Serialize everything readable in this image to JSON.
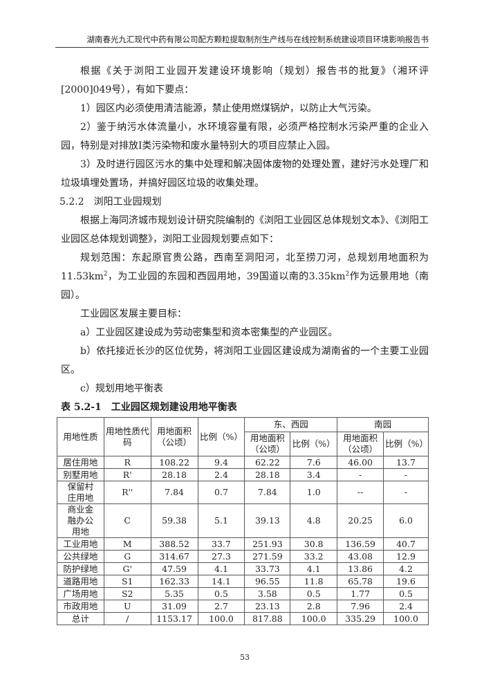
{
  "header": "湖南春光九汇现代中药有限公司配方颗粒提取制剂生产线与在线控制系统建设项目环境影响报告书",
  "paragraphs": {
    "p1": "根据《关于浏阳工业园开发建设环境影响（规划）报告书的批复》（湘环评[2000]049号），有如下要点：",
    "p2": "1）园区内必须使用清洁能源，禁止使用燃煤锅炉，以防止大气污染。",
    "p3": "2）鉴于纳污水体流量小，水环境容量有限，必须严格控制水污染严重的企业入园，特别是对排放Ⅰ类污染物和废水量特别大的项目应禁止入园。",
    "p4": "3）及时进行园区污水的集中处理和解决固体废物的处理处置，建好污水处理厂和垃圾填埋处置场，并搞好园区垃圾的收集处理。",
    "section": "5.2.2　浏阳工业园规划",
    "p5": "根据上海同济城市规划设计研究院编制的《浏阳工业园区总体规划文本》、《浏阳工业园区总体规划调整》，浏阳工业园规划要点如下：",
    "p6a": "规划范围：东起原官贵公路，西南至洞阳河，北至捞刀河，总规划用地面积为11.53km",
    "p6b": "，为工业园的东园和西园用地，39国道以南的3.35km",
    "p6c": "作为远景用地（南园）。",
    "sup": "2",
    "p7": "工业园区发展主要目标：",
    "p8": "a）工业园区建设成为劳动密集型和资本密集型的产业园区。",
    "p9": "b）依托接近长沙的区位优势，将浏阳工业园区建设成为湖南省的一个主要工业园区。",
    "p10": "c）规划用地平衡表"
  },
  "table": {
    "title": "表 5.2-1　工业园区规划建设用地平衡表",
    "headers": {
      "type": "用地性质",
      "code": "用地性质代码",
      "area": "用地面积（公顷）",
      "ratio": "比例（%）",
      "east_west": "东、西园",
      "south": "南园",
      "sub_area": "用地面积（公顷）",
      "sub_ratio": "比例（%）"
    },
    "rows": [
      [
        "居住用地",
        "R",
        "108.22",
        "9.4",
        "62.22",
        "7.6",
        "46.00",
        "13.7"
      ],
      [
        "别墅用地",
        "R'",
        "28.18",
        "2.4",
        "28.18",
        "3.4",
        "-",
        "-"
      ],
      [
        "保留村庄用地",
        "R''",
        "7.84",
        "0.7",
        "7.84",
        "1.0",
        "--",
        "-"
      ],
      [
        "商业金融办公用地",
        "C",
        "59.38",
        "5.1",
        "39.13",
        "4.8",
        "20.25",
        "6.0"
      ],
      [
        "工业用地",
        "M",
        "388.52",
        "33.7",
        "251.93",
        "30.8",
        "136.59",
        "40.7"
      ],
      [
        "公共绿地",
        "G",
        "314.67",
        "27.3",
        "271.59",
        "33.2",
        "43.08",
        "12.9"
      ],
      [
        "防护绿地",
        "G'",
        "47.59",
        "4.1",
        "33.73",
        "4.1",
        "13.86",
        "4.2"
      ],
      [
        "道路用地",
        "S1",
        "162.33",
        "14.1",
        "96.55",
        "11.8",
        "65.78",
        "19.6"
      ],
      [
        "广场用地",
        "S2",
        "5.35",
        "0.5",
        "3.58",
        "0.5",
        "1.77",
        "0.5"
      ],
      [
        "市政用地",
        "U",
        "31.09",
        "2.7",
        "23.13",
        "2.8",
        "7.96",
        "2.4"
      ],
      [
        "总计",
        "/",
        "1153.17",
        "100.0",
        "817.88",
        "100.0",
        "335.29",
        "100.0"
      ]
    ]
  },
  "page_number": "53"
}
